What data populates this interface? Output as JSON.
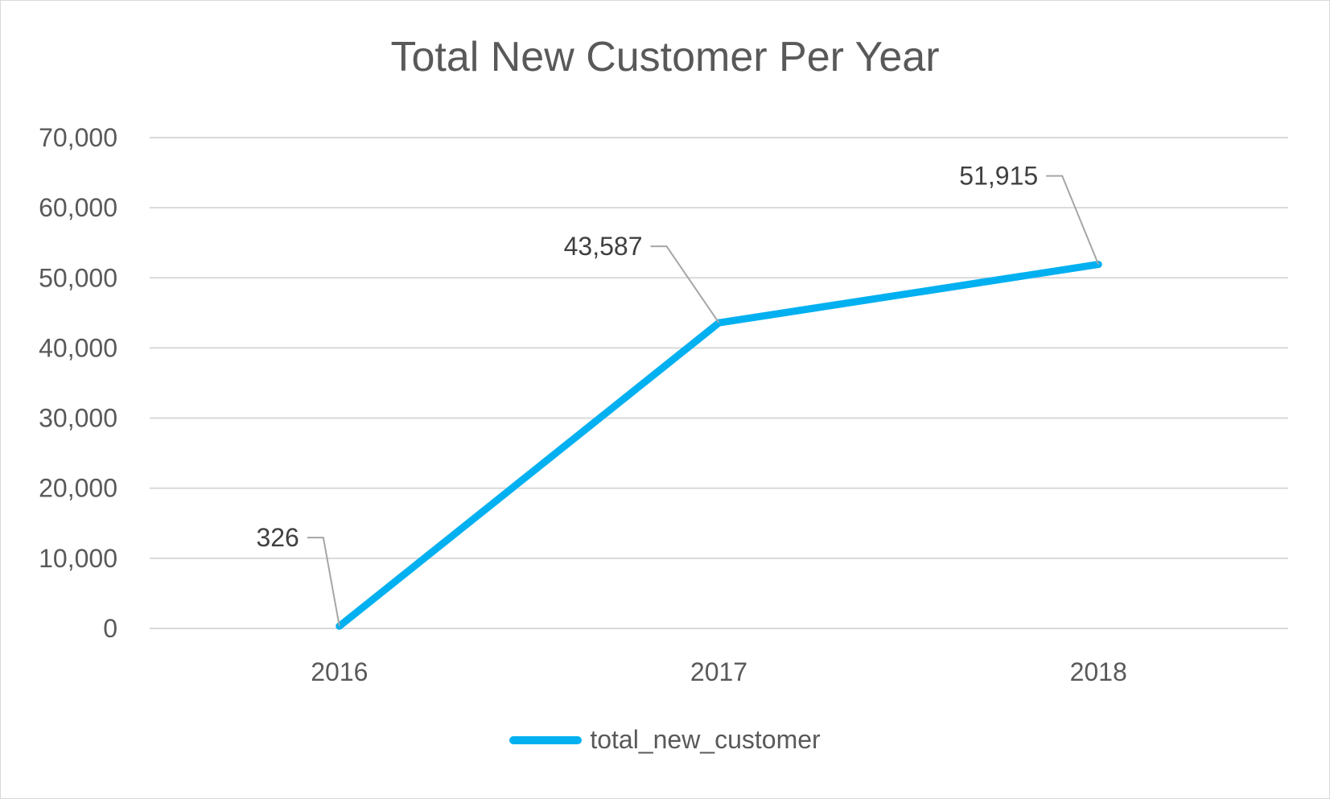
{
  "chart_data": {
    "type": "line",
    "title": "Total New Customer Per Year",
    "categories": [
      "2016",
      "2017",
      "2018"
    ],
    "series": [
      {
        "name": "total_new_customer",
        "values": [
          326,
          43587,
          51915
        ],
        "data_labels": [
          "326",
          "43,587",
          "51,915"
        ],
        "color": "#00b0f0"
      }
    ],
    "y_ticks": [
      "0",
      "10,000",
      "20,000",
      "30,000",
      "40,000",
      "50,000",
      "60,000",
      "70,000"
    ],
    "ylim": [
      0,
      70000
    ],
    "grid": true,
    "legend_position": "bottom",
    "xlabel": "",
    "ylabel": ""
  }
}
